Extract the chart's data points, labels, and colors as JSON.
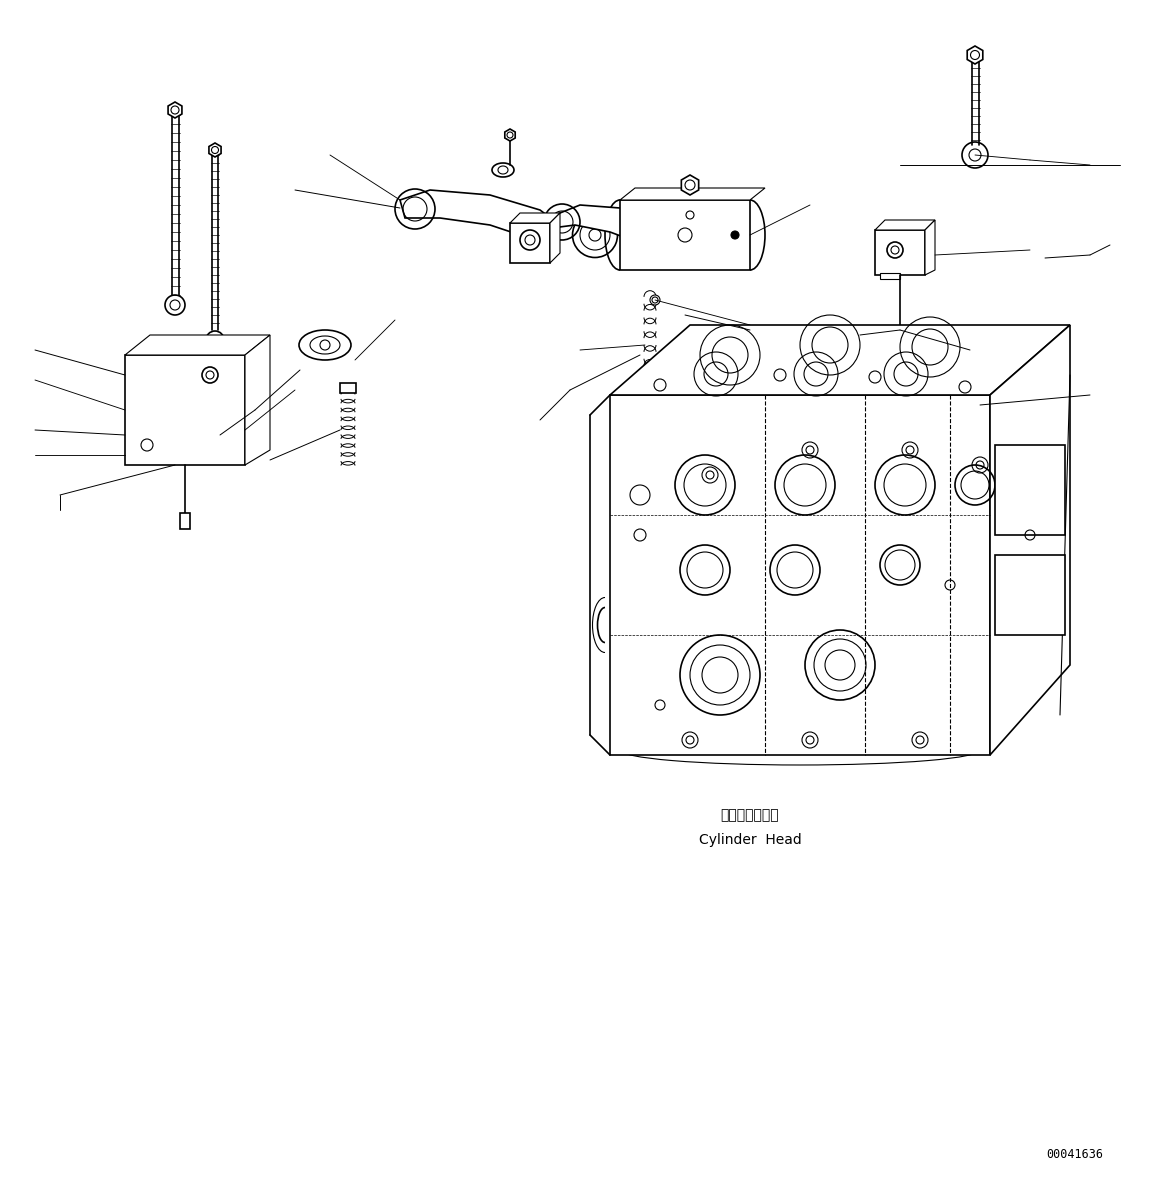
{
  "background_color": "#ffffff",
  "line_color": "#000000",
  "text_color": "#000000",
  "label_japanese": "シリンダヘッド",
  "label_english": "Cylinder  Head",
  "part_number": "00041636",
  "label_font_size": 10,
  "part_number_font_size": 8.5,
  "figsize": [
    11.63,
    11.87
  ],
  "dpi": 100
}
